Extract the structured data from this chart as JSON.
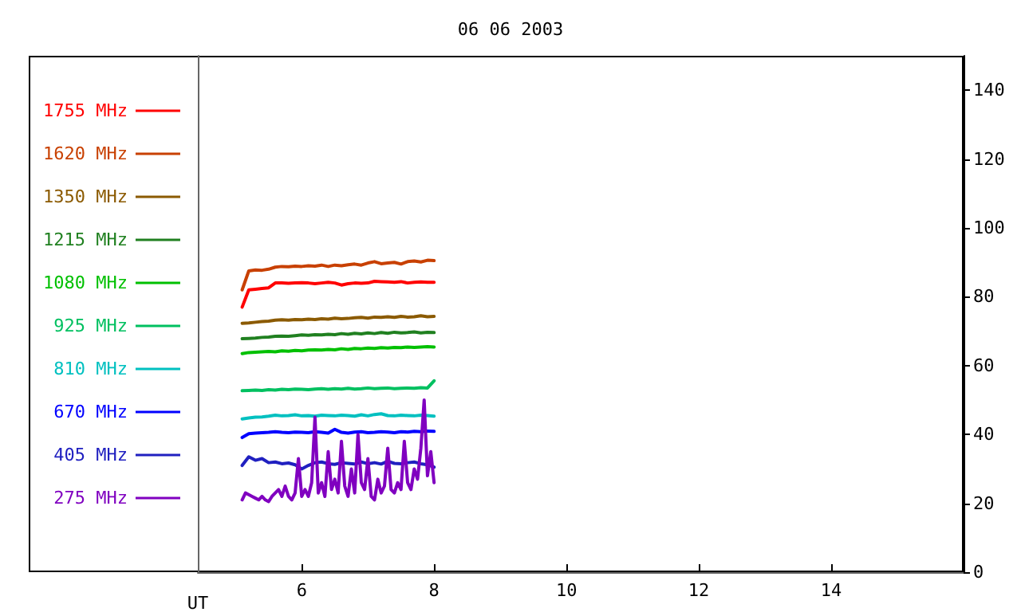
{
  "chart_data": {
    "type": "line",
    "title": "06 06 2003",
    "xlabel": "UT",
    "legend": "left",
    "marker": "none",
    "line_style": "solid",
    "grid": false,
    "xlim": [
      4.43,
      16
    ],
    "xticks": [
      6,
      8,
      10,
      12,
      14
    ],
    "ylim": [
      0,
      150
    ],
    "yticks": [
      0,
      20,
      40,
      60,
      80,
      100,
      120,
      140
    ],
    "x": [
      5.1,
      5.2,
      5.3,
      5.4,
      5.5,
      5.6,
      5.7,
      5.8,
      5.9,
      6.0,
      6.1,
      6.2,
      6.3,
      6.4,
      6.5,
      6.6,
      6.7,
      6.8,
      6.9,
      7.0,
      7.1,
      7.2,
      7.3,
      7.4,
      7.5,
      7.6,
      7.7,
      7.8,
      7.9,
      8.0
    ],
    "series": [
      {
        "name": "1755 MHz",
        "color": "#ff0000",
        "values": [
          77,
          82,
          82.2,
          82.4,
          82.6,
          84,
          84,
          83.9,
          84,
          84.1,
          84,
          83.8,
          84,
          84.2,
          84,
          83.4,
          83.8,
          84,
          83.9,
          84,
          84.5,
          84.4,
          84.3,
          84.2,
          84.4,
          84,
          84.2,
          84.3,
          84.2,
          84.2
        ]
      },
      {
        "name": "1620 MHz",
        "color": "#c84000",
        "values": [
          82,
          87.5,
          87.8,
          87.7,
          88,
          88.6,
          88.8,
          88.7,
          88.9,
          88.8,
          89,
          88.9,
          89.2,
          88.8,
          89.2,
          89,
          89.3,
          89.5,
          89.2,
          89.8,
          90.2,
          89.6,
          89.8,
          90,
          89.5,
          90.2,
          90.4,
          90.1,
          90.6,
          90.5
        ]
      },
      {
        "name": "1350 MHz",
        "color": "#8b5a00",
        "values": [
          72.3,
          72.4,
          72.6,
          72.8,
          72.9,
          73.2,
          73.3,
          73.2,
          73.4,
          73.3,
          73.5,
          73.4,
          73.6,
          73.5,
          73.8,
          73.6,
          73.7,
          73.9,
          74,
          73.8,
          74.1,
          74,
          74.2,
          74,
          74.3,
          74.1,
          74.2,
          74.5,
          74.2,
          74.3
        ]
      },
      {
        "name": "1215 MHz",
        "color": "#208020",
        "values": [
          67.8,
          67.9,
          68,
          68.2,
          68.3,
          68.5,
          68.6,
          68.5,
          68.7,
          68.9,
          68.8,
          69,
          68.9,
          69.1,
          69,
          69.3,
          69.1,
          69.4,
          69.2,
          69.5,
          69.3,
          69.6,
          69.4,
          69.7,
          69.5,
          69.6,
          69.8,
          69.5,
          69.7,
          69.6
        ]
      },
      {
        "name": "1080 MHz",
        "color": "#00c000",
        "values": [
          63.5,
          63.8,
          63.9,
          64,
          64.1,
          64,
          64.3,
          64.2,
          64.4,
          64.3,
          64.5,
          64.6,
          64.5,
          64.7,
          64.6,
          64.9,
          64.7,
          65,
          64.9,
          65.1,
          65,
          65.2,
          65.1,
          65.3,
          65.2,
          65.4,
          65.3,
          65.4,
          65.5,
          65.4
        ]
      },
      {
        "name": "925 MHz",
        "color": "#00c060",
        "values": [
          52.7,
          52.8,
          52.9,
          52.8,
          53,
          52.9,
          53.1,
          53,
          53.2,
          53.1,
          53,
          53.2,
          53.3,
          53.1,
          53.3,
          53.2,
          53.4,
          53.2,
          53.3,
          53.5,
          53.3,
          53.4,
          53.5,
          53.3,
          53.4,
          53.5,
          53.4,
          53.6,
          53.5,
          55.6
        ]
      },
      {
        "name": "810 MHz",
        "color": "#00c0c0",
        "values": [
          44.5,
          44.8,
          45,
          45.1,
          45.3,
          45.6,
          45.4,
          45.5,
          45.7,
          45.4,
          45.5,
          45.3,
          45.6,
          45.5,
          45.4,
          45.6,
          45.5,
          45.3,
          45.7,
          45.4,
          45.8,
          46,
          45.5,
          45.4,
          45.6,
          45.5,
          45.4,
          45.6,
          45.5,
          45.3
        ]
      },
      {
        "name": "670 MHz",
        "color": "#0000ff",
        "values": [
          39.1,
          40.2,
          40.4,
          40.5,
          40.6,
          40.8,
          40.6,
          40.5,
          40.7,
          40.6,
          40.5,
          40.8,
          40.6,
          40.4,
          41.5,
          40.6,
          40.4,
          40.7,
          40.8,
          40.5,
          40.6,
          40.8,
          40.7,
          40.5,
          40.8,
          40.7,
          40.9,
          40.8,
          41,
          40.9
        ]
      },
      {
        "name": "405 MHz",
        "color": "#2020c0",
        "values": [
          31,
          33.5,
          32.5,
          33,
          31.8,
          32,
          31.5,
          31.7,
          31.2,
          30,
          31,
          31.8,
          32,
          31.5,
          31.3,
          31.8,
          31.6,
          31.4,
          32,
          31.5,
          31.8,
          31.4,
          32.2,
          31.6,
          31.5,
          31.8,
          32,
          31.5,
          31.2,
          30.5
        ]
      },
      {
        "name": "275 MHz",
        "color": "#8000c0",
        "x": [
          5.1,
          5.15,
          5.2,
          5.25,
          5.3,
          5.35,
          5.4,
          5.45,
          5.5,
          5.55,
          5.6,
          5.65,
          5.7,
          5.75,
          5.8,
          5.85,
          5.9,
          5.95,
          6.0,
          6.05,
          6.1,
          6.15,
          6.2,
          6.25,
          6.3,
          6.35,
          6.4,
          6.45,
          6.5,
          6.55,
          6.6,
          6.65,
          6.7,
          6.75,
          6.8,
          6.85,
          6.9,
          6.95,
          7.0,
          7.05,
          7.1,
          7.15,
          7.2,
          7.25,
          7.3,
          7.35,
          7.4,
          7.45,
          7.5,
          7.55,
          7.6,
          7.65,
          7.7,
          7.75,
          7.8,
          7.85,
          7.9,
          7.95,
          8.0
        ],
        "values": [
          21,
          23,
          22.5,
          22,
          21.5,
          21,
          22,
          21,
          20.5,
          22,
          23,
          24,
          22,
          25,
          22,
          21,
          23,
          33,
          22,
          24,
          22,
          26,
          45,
          23,
          26,
          22,
          35,
          24,
          27,
          23,
          38,
          25,
          22,
          30,
          23,
          40,
          26,
          24,
          33,
          22,
          21,
          27,
          23,
          25,
          36,
          24,
          23,
          26,
          24,
          38,
          26,
          24,
          30,
          27,
          36,
          50,
          28,
          35,
          26
        ]
      }
    ]
  }
}
